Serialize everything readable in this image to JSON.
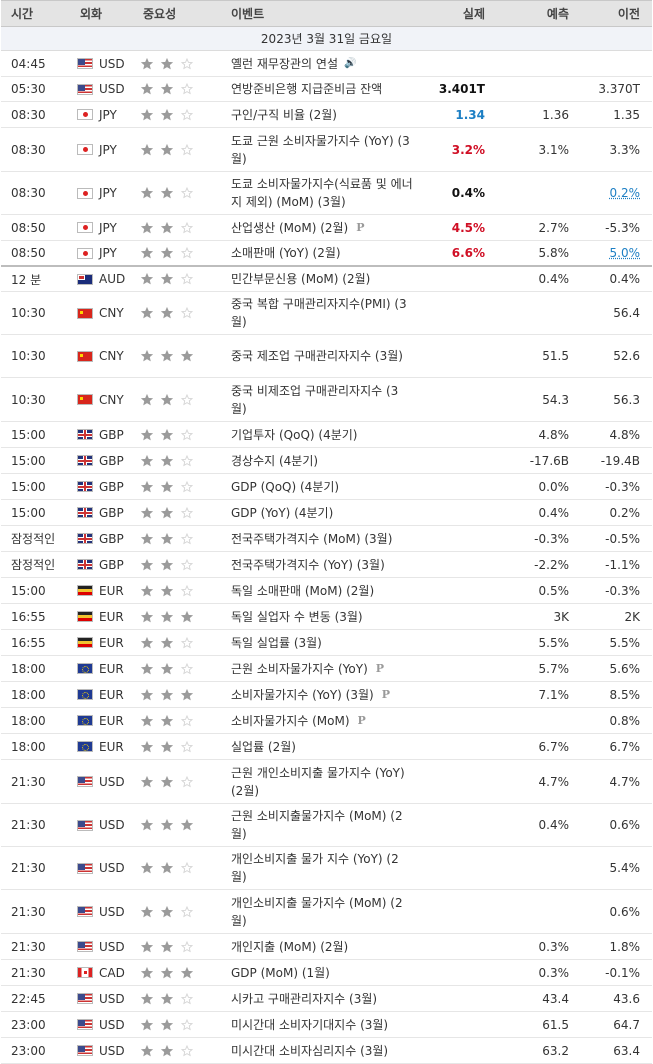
{
  "header": {
    "time": "시간",
    "currency": "외화",
    "importance": "중요성",
    "event": "이벤트",
    "actual": "실제",
    "forecast": "예측",
    "previous": "이전"
  },
  "date_label": "2023년 3월 31일 금요일",
  "colors": {
    "star_on": "#9b9b9b",
    "star_off": "#d4d4d4",
    "red": "#d00f25",
    "blue": "#1d7fc4"
  },
  "rows": [
    {
      "time": "04:45",
      "flag": "usd",
      "currency": "USD",
      "stars": 2,
      "event": "옐런 재무장관의 연설",
      "speaker": true,
      "actual": "",
      "forecast": "",
      "previous": "",
      "h": 26
    },
    {
      "time": "05:30",
      "flag": "usd",
      "currency": "USD",
      "stars": 2,
      "event": "연방준비은행 지급준비금 잔액",
      "actual": "3.401T",
      "actual_color": "black",
      "forecast": "",
      "previous": "3.370T",
      "h": 25
    },
    {
      "time": "08:30",
      "flag": "jpy",
      "currency": "JPY",
      "stars": 2,
      "event": "구인/구직 비율 (2월)",
      "actual": "1.34",
      "actual_color": "blue",
      "forecast": "1.36",
      "previous": "1.35",
      "h": 26
    },
    {
      "time": "08:30",
      "flag": "jpy",
      "currency": "JPY",
      "stars": 2,
      "event": "도쿄 근원 소비자물가지수 (YoY) (3월)",
      "actual": "3.2%",
      "actual_color": "red",
      "forecast": "3.1%",
      "previous": "3.3%",
      "h": 44
    },
    {
      "time": "08:30",
      "flag": "jpy",
      "currency": "JPY",
      "stars": 2,
      "event": "도쿄 소비자물가지수(식료품 및 에너지 제외) (MoM) (3월)",
      "actual": "0.4%",
      "actual_color": "black",
      "forecast": "",
      "previous": "0.2%",
      "previous_link": true,
      "h": 43
    },
    {
      "time": "08:50",
      "flag": "jpy",
      "currency": "JPY",
      "stars": 2,
      "event": "산업생산 (MoM) (2월)",
      "prelim": true,
      "actual": "4.5%",
      "actual_color": "red",
      "forecast": "2.7%",
      "previous": "-5.3%",
      "h": 26
    },
    {
      "time": "08:50",
      "flag": "jpy",
      "currency": "JPY",
      "stars": 2,
      "event": "소매판매 (YoY) (2월)",
      "actual": "6.6%",
      "actual_color": "red",
      "forecast": "5.8%",
      "previous": "5.0%",
      "previous_link": true,
      "h": 26,
      "sep": true
    },
    {
      "time": "12 분",
      "flag": "aud",
      "currency": "AUD",
      "stars": 2,
      "event": "민간부문신용 (MoM) (2월)",
      "actual": "",
      "forecast": "0.4%",
      "previous": "0.4%",
      "h": 25
    },
    {
      "time": "10:30",
      "flag": "cny",
      "currency": "CNY",
      "stars": 2,
      "event": "중국 복합 구매관리자지수(PMI) (3월)",
      "actual": "",
      "forecast": "",
      "previous": "56.4",
      "h": 43
    },
    {
      "time": "10:30",
      "flag": "cny",
      "currency": "CNY",
      "stars": 3,
      "event": "중국 제조업 구매관리자지수 (3월)",
      "actual": "",
      "forecast": "51.5",
      "previous": "52.6",
      "h": 43
    },
    {
      "time": "10:30",
      "flag": "cny",
      "currency": "CNY",
      "stars": 2,
      "event": "중국 비제조업 구매관리자지수 (3월)",
      "actual": "",
      "forecast": "54.3",
      "previous": "56.3",
      "h": 44
    },
    {
      "time": "15:00",
      "flag": "gbp",
      "currency": "GBP",
      "stars": 2,
      "event": "기업투자 (QoQ) (4분기)",
      "actual": "",
      "forecast": "4.8%",
      "previous": "4.8%",
      "h": 26
    },
    {
      "time": "15:00",
      "flag": "gbp",
      "currency": "GBP",
      "stars": 2,
      "event": "경상수지 (4분기)",
      "actual": "",
      "forecast": "-17.6B",
      "previous": "-19.4B",
      "h": 26
    },
    {
      "time": "15:00",
      "flag": "gbp",
      "currency": "GBP",
      "stars": 2,
      "event": "GDP (QoQ) (4분기)",
      "actual": "",
      "forecast": "0.0%",
      "previous": "-0.3%",
      "h": 26
    },
    {
      "time": "15:00",
      "flag": "gbp",
      "currency": "GBP",
      "stars": 2,
      "event": "GDP (YoY) (4분기)",
      "actual": "",
      "forecast": "0.4%",
      "previous": "0.2%",
      "h": 26
    },
    {
      "time": "잠정적인",
      "flag": "gbp",
      "currency": "GBP",
      "stars": 2,
      "event": "전국주택가격지수 (MoM) (3월)",
      "actual": "",
      "forecast": "-0.3%",
      "previous": "-0.5%",
      "h": 26
    },
    {
      "time": "잠정적인",
      "flag": "gbp",
      "currency": "GBP",
      "stars": 2,
      "event": "전국주택가격지수 (YoY) (3월)",
      "actual": "",
      "forecast": "-2.2%",
      "previous": "-1.1%",
      "h": 26
    },
    {
      "time": "15:00",
      "flag": "eur",
      "currency": "EUR",
      "stars": 2,
      "event": "독일 소매판매 (MoM) (2월)",
      "actual": "",
      "forecast": "0.5%",
      "previous": "-0.3%",
      "h": 26
    },
    {
      "time": "16:55",
      "flag": "eur",
      "currency": "EUR",
      "stars": 3,
      "event": "독일 실업자 수 변동 (3월)",
      "actual": "",
      "forecast": "3K",
      "previous": "2K",
      "h": 26
    },
    {
      "time": "16:55",
      "flag": "eur",
      "currency": "EUR",
      "stars": 2,
      "event": "독일 실업률 (3월)",
      "actual": "",
      "forecast": "5.5%",
      "previous": "5.5%",
      "h": 26
    },
    {
      "time": "18:00",
      "flag": "eu",
      "currency": "EUR",
      "stars": 2,
      "event": "근원 소비자물가지수 (YoY)",
      "prelim": true,
      "actual": "",
      "forecast": "5.7%",
      "previous": "5.6%",
      "h": 26
    },
    {
      "time": "18:00",
      "flag": "eu",
      "currency": "EUR",
      "stars": 3,
      "event": "소비자물가지수 (YoY) (3월)",
      "prelim": true,
      "actual": "",
      "forecast": "7.1%",
      "previous": "8.5%",
      "h": 26
    },
    {
      "time": "18:00",
      "flag": "eu",
      "currency": "EUR",
      "stars": 2,
      "event": "소비자물가지수 (MoM)",
      "prelim": true,
      "actual": "",
      "forecast": "",
      "previous": "0.8%",
      "h": 26
    },
    {
      "time": "18:00",
      "flag": "eu",
      "currency": "EUR",
      "stars": 2,
      "event": "실업률 (2월)",
      "actual": "",
      "forecast": "6.7%",
      "previous": "6.7%",
      "h": 26
    },
    {
      "time": "21:30",
      "flag": "usd",
      "currency": "USD",
      "stars": 2,
      "event": "근원 개인소비지출 물가지수 (YoY) (2월)",
      "actual": "",
      "forecast": "4.7%",
      "previous": "4.7%",
      "h": 44
    },
    {
      "time": "21:30",
      "flag": "usd",
      "currency": "USD",
      "stars": 3,
      "event": "근원 소비지출물가지수 (MoM) (2월)",
      "actual": "",
      "forecast": "0.4%",
      "previous": "0.6%",
      "h": 43
    },
    {
      "time": "21:30",
      "flag": "usd",
      "currency": "USD",
      "stars": 2,
      "event": "개인소비지출 물가 지수 (YoY) (2월)",
      "actual": "",
      "forecast": "",
      "previous": "5.4%",
      "h": 43
    },
    {
      "time": "21:30",
      "flag": "usd",
      "currency": "USD",
      "stars": 2,
      "event": "개인소비지출 물가지수 (MoM) (2월)",
      "actual": "",
      "forecast": "",
      "previous": "0.6%",
      "h": 44
    },
    {
      "time": "21:30",
      "flag": "usd",
      "currency": "USD",
      "stars": 2,
      "event": "개인지출 (MoM) (2월)",
      "actual": "",
      "forecast": "0.3%",
      "previous": "1.8%",
      "h": 26
    },
    {
      "time": "21:30",
      "flag": "cad",
      "currency": "CAD",
      "stars": 3,
      "event": "GDP (MoM) (1월)",
      "actual": "",
      "forecast": "0.3%",
      "previous": "-0.1%",
      "h": 26
    },
    {
      "time": "22:45",
      "flag": "usd",
      "currency": "USD",
      "stars": 2,
      "event": "시카고 구매관리자지수 (3월)",
      "actual": "",
      "forecast": "43.4",
      "previous": "43.6",
      "h": 26
    },
    {
      "time": "23:00",
      "flag": "usd",
      "currency": "USD",
      "stars": 2,
      "event": "미시간대 소비자기대지수 (3월)",
      "actual": "",
      "forecast": "61.5",
      "previous": "64.7",
      "h": 26
    },
    {
      "time": "23:00",
      "flag": "usd",
      "currency": "USD",
      "stars": 2,
      "event": "미시간대 소비자심리지수 (3월)",
      "actual": "",
      "forecast": "63.2",
      "previous": "63.4",
      "h": 26
    }
  ]
}
